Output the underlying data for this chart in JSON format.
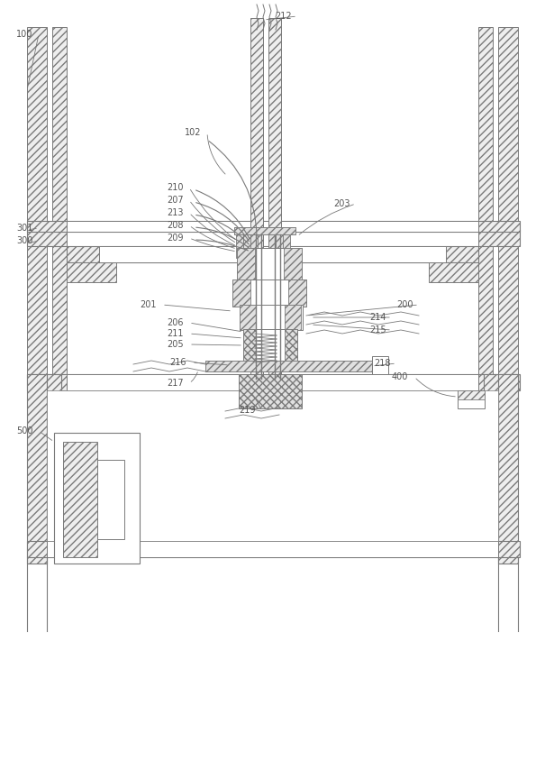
{
  "bg_color": "#ffffff",
  "lc": "#7a7a7a",
  "tc": "#555555",
  "figsize": [
    6.05,
    8.64
  ],
  "dpi": 100
}
